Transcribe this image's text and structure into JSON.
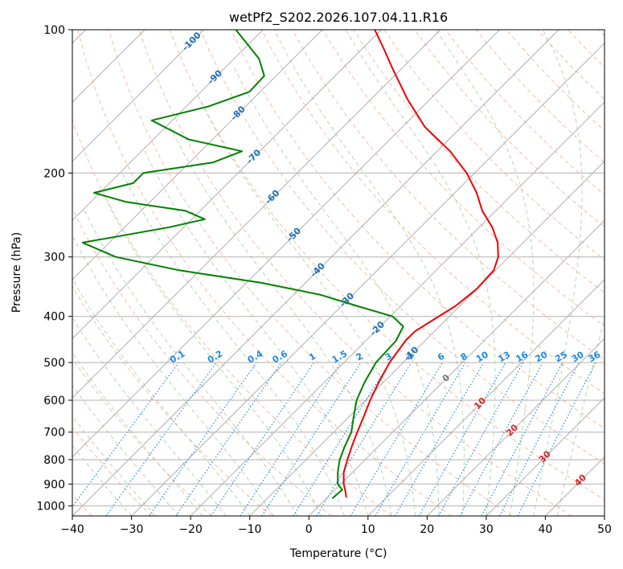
{
  "chart_data": {
    "type": "skew-t",
    "title": "wetPf2_S202.2026.107.04.11.R16",
    "xlabel": "Temperature (°C)",
    "ylabel": "Pressure (hPa)",
    "xlim": [
      -40,
      50
    ],
    "ylim": [
      1050,
      100
    ],
    "x_ticks": [
      "−40",
      "−30",
      "−20",
      "−10",
      "0",
      "10",
      "20",
      "30",
      "40",
      "50"
    ],
    "y_ticks": [
      {
        "p": 100,
        "label": "100"
      },
      {
        "p": 200,
        "label": "200"
      },
      {
        "p": 300,
        "label": "300"
      },
      {
        "p": 400,
        "label": "400"
      },
      {
        "p": 500,
        "label": "500"
      },
      {
        "p": 600,
        "label": "600"
      },
      {
        "p": 700,
        "label": "700"
      },
      {
        "p": 800,
        "label": "800"
      },
      {
        "p": 900,
        "label": "900"
      },
      {
        "p": 1000,
        "label": "1000"
      }
    ],
    "series": [
      {
        "name": "temperature",
        "color": "#ee0000",
        "points": [
          [
            960,
            3.2
          ],
          [
            925,
            1.7
          ],
          [
            900,
            0.5
          ],
          [
            850,
            -1.5
          ],
          [
            800,
            -3.0
          ],
          [
            750,
            -4.5
          ],
          [
            700,
            -6.0
          ],
          [
            650,
            -7.5
          ],
          [
            600,
            -9.2
          ],
          [
            550,
            -10.8
          ],
          [
            500,
            -12.3
          ],
          [
            450,
            -13.3
          ],
          [
            430,
            -13.3
          ],
          [
            410,
            -12.3
          ],
          [
            380,
            -10.7
          ],
          [
            350,
            -10.0
          ],
          [
            320,
            -10.3
          ],
          [
            300,
            -11.8
          ],
          [
            280,
            -14.3
          ],
          [
            260,
            -17.8
          ],
          [
            240,
            -22.3
          ],
          [
            220,
            -26.3
          ],
          [
            200,
            -31.3
          ],
          [
            180,
            -37.8
          ],
          [
            160,
            -46.2
          ],
          [
            140,
            -53.8
          ],
          [
            120,
            -61.8
          ],
          [
            110,
            -66.2
          ],
          [
            100,
            -71.1
          ]
        ]
      },
      {
        "name": "dewpoint",
        "color": "#008000",
        "points": [
          [
            965,
            1.0
          ],
          [
            925,
            1.2
          ],
          [
            900,
            -0.5
          ],
          [
            850,
            -2.5
          ],
          [
            800,
            -4.3
          ],
          [
            750,
            -5.7
          ],
          [
            700,
            -7.0
          ],
          [
            650,
            -9.2
          ],
          [
            600,
            -11.5
          ],
          [
            550,
            -13.2
          ],
          [
            500,
            -14.6
          ],
          [
            450,
            -14.9
          ],
          [
            420,
            -16.1
          ],
          [
            400,
            -19.6
          ],
          [
            380,
            -27.5
          ],
          [
            360,
            -35.6
          ],
          [
            340,
            -47.5
          ],
          [
            320,
            -63.5
          ],
          [
            300,
            -76.5
          ],
          [
            280,
            -84.5
          ],
          [
            260,
            -72.5
          ],
          [
            250,
            -67.8
          ],
          [
            240,
            -72.5
          ],
          [
            230,
            -84.0
          ],
          [
            220,
            -91.0
          ],
          [
            210,
            -86.0
          ],
          [
            200,
            -86.0
          ],
          [
            190,
            -76.0
          ],
          [
            180,
            -73.0
          ],
          [
            170,
            -84.0
          ],
          [
            155,
            -93.5
          ],
          [
            145,
            -86.3
          ],
          [
            135,
            -81.8
          ],
          [
            125,
            -82.0
          ],
          [
            115,
            -85.8
          ],
          [
            100,
            -94.6
          ]
        ]
      }
    ],
    "isotherm_labels": [
      {
        "t": -100,
        "p": 106,
        "label": "-100"
      },
      {
        "t": -90,
        "p": 126,
        "label": "-90"
      },
      {
        "t": -80,
        "p": 150,
        "label": "-80"
      },
      {
        "t": -70,
        "p": 185,
        "label": "-70"
      },
      {
        "t": -60,
        "p": 225,
        "label": "-60"
      },
      {
        "t": -50,
        "p": 270,
        "label": "-50"
      },
      {
        "t": -40,
        "p": 320,
        "label": "-40"
      },
      {
        "t": -30,
        "p": 370,
        "label": "-30"
      },
      {
        "t": -20,
        "p": 425,
        "label": "-20"
      },
      {
        "t": -10,
        "p": 480,
        "label": "-10"
      },
      {
        "t": 0,
        "p": 540,
        "label": "0"
      },
      {
        "t": 10,
        "p": 610,
        "label": "10"
      },
      {
        "t": 20,
        "p": 695,
        "label": "20"
      },
      {
        "t": 30,
        "p": 790,
        "label": "30"
      },
      {
        "t": 40,
        "p": 885,
        "label": "40"
      }
    ],
    "mixing_ratio_labels": [
      "0.1",
      "0.2",
      "0.4",
      "0.6",
      "1",
      "1.5",
      "2",
      "3",
      "4",
      "6",
      "8",
      "10",
      "13",
      "16",
      "20",
      "25",
      "30",
      "36"
    ],
    "mixing_ratio_label_pressure": 500
  },
  "colors": {
    "temperature": "#ee0000",
    "dewpoint": "#008000",
    "isotherm": "#9a9a9a",
    "isobar": "#b0b0b0",
    "dry_adiabat": "#f4a582",
    "moist_adiabat": "#8fc98f",
    "mixing_ratio": "#1e88e5",
    "label_cold": "#1f6fb4",
    "label_zero": "#777777",
    "label_warm": "#d62728"
  }
}
